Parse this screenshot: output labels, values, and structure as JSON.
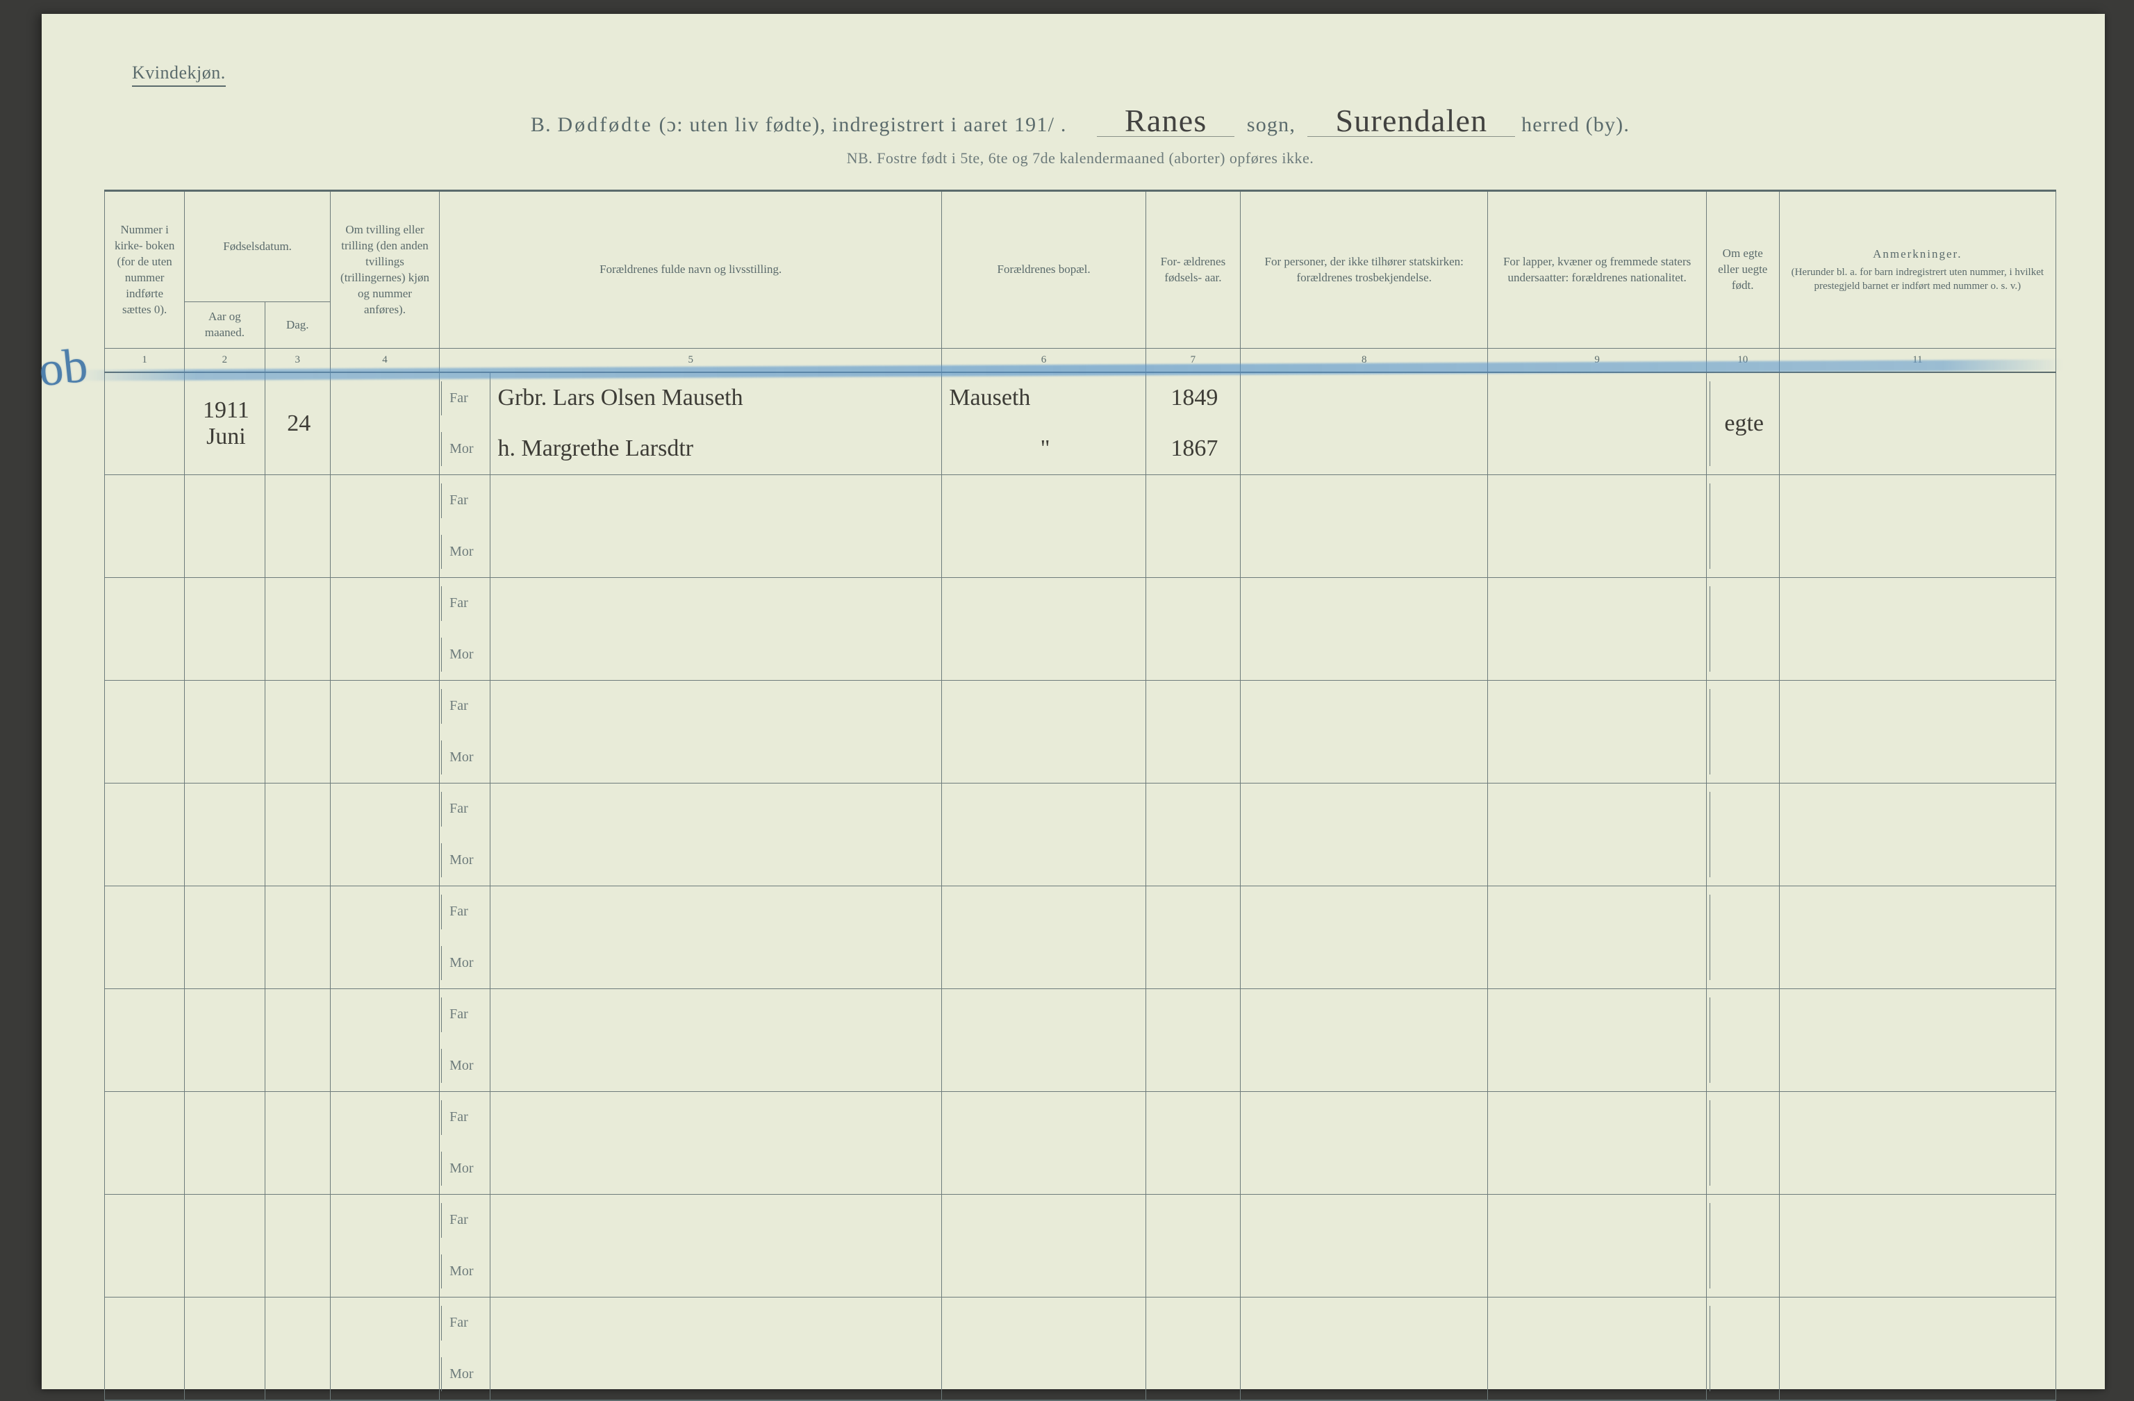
{
  "header": {
    "gender_label": "Kvindekjøn.",
    "title_prefix": "B.",
    "title_main_a": "Dødfødte",
    "title_main_b": "(ɔ: uten liv fødte), indregistrert i aaret 191",
    "year_suffix": "/ .",
    "sogn_value": "Ranes",
    "sogn_label": "sogn,",
    "herred_value": "Surendalen",
    "herred_label": "herred (by).",
    "nb": "NB.  Fostre født i 5te, 6te og 7de kalendermaaned (aborter) opføres ikke."
  },
  "columns": {
    "c1": "Nummer i kirke- boken (for de uten nummer indførte sættes 0).",
    "c_fodsel": "Fødselsdatum.",
    "c2": "Aar og maaned.",
    "c3": "Dag.",
    "c4": "Om tvilling eller trilling (den anden tvillings (trillingernes) kjøn og nummer anføres).",
    "c5": "Forældrenes fulde navn og livsstilling.",
    "c6": "Forældrenes bopæl.",
    "c7": "For- ældrenes fødsels- aar.",
    "c8": "For personer, der ikke tilhører statskirken: forældrenes trosbekjendelse.",
    "c9": "For lapper, kvæner og fremmede staters undersaatter: forældrenes nationalitet.",
    "c10": "Om egte eller uegte født.",
    "c11_a": "Anmerkninger.",
    "c11_b": "(Herunder bl. a. for barn indregistrert uten nummer, i hvilket prestegjeld barnet er indført med nummer o. s. v.)"
  },
  "colnums": [
    "1",
    "2",
    "3",
    "4",
    "5",
    "6",
    "7",
    "8",
    "9",
    "10",
    "11"
  ],
  "labels": {
    "far": "Far",
    "mor": "Mor"
  },
  "entry": {
    "margin_mark": "ob",
    "year": "1911",
    "month": "Juni",
    "day": "24",
    "far_name": "Grbr. Lars Olsen Mauseth",
    "mor_name": "h. Margrethe Larsdtr",
    "far_bopael": "Mauseth",
    "mor_bopael": "\"",
    "far_birth": "1849",
    "mor_birth": "1867",
    "legit": "egte"
  },
  "colors": {
    "paper": "#e8ebd8",
    "ink_print": "#5b6b6c",
    "ink_hand": "#3d3c36",
    "crayon": "#4e7fab"
  }
}
